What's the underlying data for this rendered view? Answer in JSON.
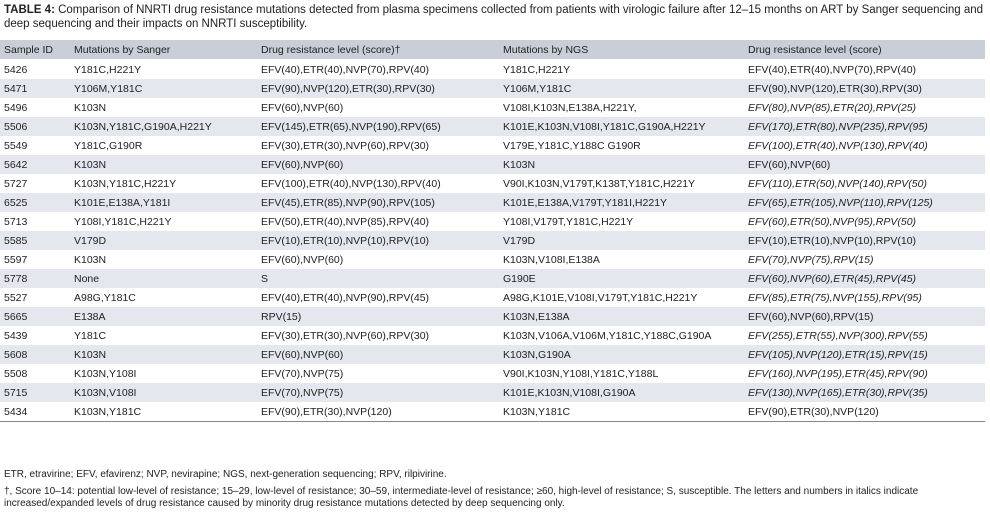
{
  "caption": {
    "label": "TABLE 4:",
    "text": "Comparison of NNRTI drug resistance mutations detected from plasma specimens collected from patients with virologic failure after 12–15 months on ART by Sanger sequencing and deep sequencing and their impacts on NNRTI susceptibility."
  },
  "table": {
    "header": [
      "Sample ID",
      "Mutations by Sanger",
      "Drug resistance level (score)†",
      "Mutations by NGS",
      "Drug resistance level (score)"
    ],
    "rows": [
      {
        "cells": [
          "5426",
          "Y181C,H221Y",
          "EFV(40),ETR(40),NVP(70),RPV(40)",
          "Y181C,H221Y",
          "EFV(40),ETR(40),NVP(70),RPV(40)"
        ],
        "italic": false
      },
      {
        "cells": [
          "5471",
          "Y106M,Y181C",
          "EFV(90),NVP(120),ETR(30),RPV(30)",
          "Y106M,Y181C",
          "EFV(90),NVP(120),ETR(30),RPV(30)"
        ],
        "italic": false
      },
      {
        "cells": [
          "5496",
          "K103N",
          "EFV(60),NVP(60)",
          "V108I,K103N,E138A,H221Y,",
          "EFV(80),NVP(85),ETR(20),RPV(25)"
        ],
        "italic": true
      },
      {
        "cells": [
          "5506",
          "K103N,Y181C,G190A,H221Y",
          "EFV(145),ETR(65),NVP(190),RPV(65)",
          "K101E,K103N,V108I,Y181C,G190A,H221Y",
          "EFV(170),ETR(80),NVP(235),RPV(95)"
        ],
        "italic": true
      },
      {
        "cells": [
          "5549",
          "Y181C,G190R",
          "EFV(30),ETR(30),NVP(60),RPV(30)",
          "V179E,Y181C,Y188C G190R",
          "EFV(100),ETR(40),NVP(130),RPV(40)"
        ],
        "italic": true
      },
      {
        "cells": [
          "5642",
          "K103N",
          "EFV(60),NVP(60)",
          "K103N",
          "EFV(60),NVP(60)"
        ],
        "italic": false
      },
      {
        "cells": [
          "5727",
          "K103N,Y181C,H221Y",
          "EFV(100),ETR(40),NVP(130),RPV(40)",
          "V90I,K103N,V179T,K138T,Y181C,H221Y",
          "EFV(110),ETR(50),NVP(140),RPV(50)"
        ],
        "italic": true
      },
      {
        "cells": [
          "6525",
          "K101E,E138A,Y181I",
          "EFV(45),ETR(85),NVP(90),RPV(105)",
          "K101E,E138A,V179T,Y181I,H221Y",
          "EFV(65),ETR(105),NVP(110),RPV(125)"
        ],
        "italic": true
      },
      {
        "cells": [
          "5713",
          "Y108I,Y181C,H221Y",
          "EFV(50),ETR(40),NVP(85),RPV(40)",
          "Y108I,V179T,Y181C,H221Y",
          "EFV(60),ETR(50),NVP(95),RPV(50)"
        ],
        "italic": true
      },
      {
        "cells": [
          "5585",
          "V179D",
          "EFV(10),ETR(10),NVP(10),RPV(10)",
          "V179D",
          "EFV(10),ETR(10),NVP(10),RPV(10)"
        ],
        "italic": false
      },
      {
        "cells": [
          "5597",
          "K103N",
          "EFV(60),NVP(60)",
          "K103N,V108I,E138A",
          "EFV(70),NVP(75),RPV(15)"
        ],
        "italic": true
      },
      {
        "cells": [
          "5778",
          "None",
          "S",
          "G190E",
          "EFV(60),NVP(60),ETR(45),RPV(45)"
        ],
        "italic": true
      },
      {
        "cells": [
          "5527",
          "A98G,Y181C",
          "EFV(40),ETR(40),NVP(90),RPV(45)",
          "A98G,K101E,V108I,V179T,Y181C,H221Y",
          "EFV(85),ETR(75),NVP(155),RPV(95)"
        ],
        "italic": true
      },
      {
        "cells": [
          "5665",
          "E138A",
          "RPV(15)",
          "K103N,E138A",
          "EFV(60),NVP(60),RPV(15)"
        ],
        "italic": false
      },
      {
        "cells": [
          "5439",
          "Y181C",
          "EFV(30),ETR(30),NVP(60),RPV(30)",
          "K103N,V106A,V106M,Y181C,Y188C,G190A",
          "EFV(255),ETR(55),NVP(300),RPV(55)"
        ],
        "italic": true
      },
      {
        "cells": [
          "5608",
          "K103N",
          "EFV(60),NVP(60)",
          "K103N,G190A",
          "EFV(105),NVP(120),ETR(15),RPV(15)"
        ],
        "italic": true
      },
      {
        "cells": [
          "5508",
          "K103N,Y108I",
          "EFV(70),NVP(75)",
          "V90I,K103N,Y108I,Y181C,Y188L",
          "EFV(160),NVP(195),ETR(45),RPV(90)"
        ],
        "italic": true
      },
      {
        "cells": [
          "5715",
          "K103N,V108I",
          "EFV(70),NVP(75)",
          "K101E,K103N,V108I,G190A",
          "EFV(130),NVP(165),ETR(30),RPV(35)"
        ],
        "italic": true
      },
      {
        "cells": [
          "5434",
          "K103N,Y181C",
          "EFV(90),ETR(30),NVP(120)",
          "K103N,Y181C",
          "EFV(90),ETR(30),NVP(120)"
        ],
        "italic": false
      }
    ]
  },
  "footnotes": [
    "ETR, etravirine; EFV, efavirenz; NVP, nevirapine; NGS, next-generation sequencing; RPV, rilpivirine.",
    "†, Score 10–14: potential low-level of resistance; 15–29, low-level of resistance; 30–59, intermediate-level of resistance; ≥60, high-level of resistance; S, susceptible. The letters and numbers in italics indicate increased/expanded levels of drug resistance caused by minority drug resistance mutations detected by deep sequencing only."
  ]
}
